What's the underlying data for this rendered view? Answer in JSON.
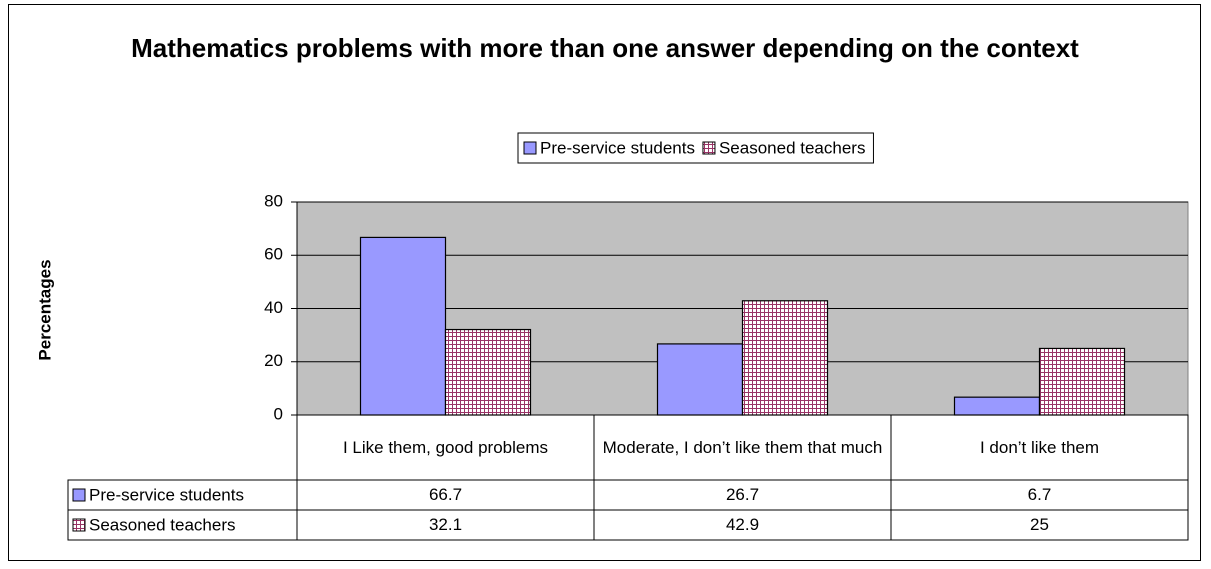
{
  "chart_data": {
    "type": "bar",
    "title": "Mathematics problems with more than one answer depending on the context",
    "y_label": "Percentages",
    "categories": [
      "I Like them, good problems",
      "Moderate, I don’t like them that much",
      "I don’t like them"
    ],
    "series": [
      {
        "name": "Pre-service students",
        "color": "#9999ff",
        "values": [
          66.7,
          26.7,
          6.7
        ]
      },
      {
        "name": "Seasoned teachers",
        "color": "#993366",
        "values": [
          32.1,
          42.9,
          25
        ]
      }
    ],
    "ylim": [
      0,
      80
    ],
    "yticks": [
      0,
      20,
      40,
      60,
      80
    ],
    "grid": true,
    "legend": "top",
    "data_table": true
  }
}
